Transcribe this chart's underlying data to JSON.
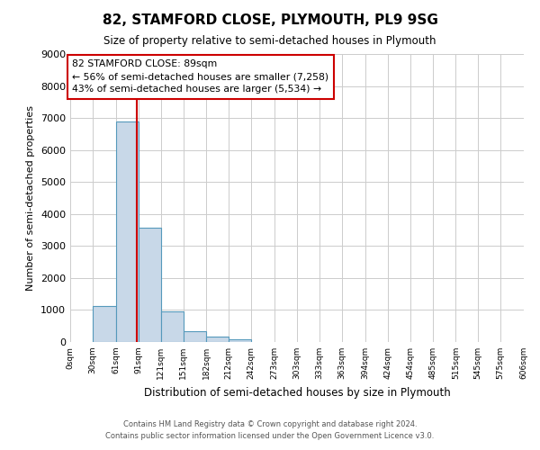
{
  "title": "82, STAMFORD CLOSE, PLYMOUTH, PL9 9SG",
  "subtitle": "Size of property relative to semi-detached houses in Plymouth",
  "xlabel": "Distribution of semi-detached houses by size in Plymouth",
  "ylabel": "Number of semi-detached properties",
  "property_size": 89,
  "property_line_color": "#cc0000",
  "bar_color": "#c8d8e8",
  "bar_edge_color": "#5599bb",
  "annotation_box_edge_color": "#cc0000",
  "annotation_title": "82 STAMFORD CLOSE: 89sqm",
  "annotation_line1": "← 56% of semi-detached houses are smaller (7,258)",
  "annotation_line2": "43% of semi-detached houses are larger (5,534) →",
  "ylim": [
    0,
    9000
  ],
  "yticks": [
    0,
    1000,
    2000,
    3000,
    4000,
    5000,
    6000,
    7000,
    8000,
    9000
  ],
  "bin_edges": [
    0,
    30,
    61,
    91,
    121,
    151,
    182,
    212,
    242,
    273,
    303,
    333,
    363,
    394,
    424,
    454,
    485,
    515,
    545,
    575,
    606
  ],
  "bin_counts": [
    0,
    1130,
    6880,
    3560,
    960,
    340,
    155,
    80,
    0,
    0,
    0,
    0,
    0,
    0,
    0,
    0,
    0,
    0,
    0,
    0
  ],
  "footer_line1": "Contains HM Land Registry data © Crown copyright and database right 2024.",
  "footer_line2": "Contains public sector information licensed under the Open Government Licence v3.0.",
  "background_color": "#ffffff",
  "grid_color": "#cccccc"
}
